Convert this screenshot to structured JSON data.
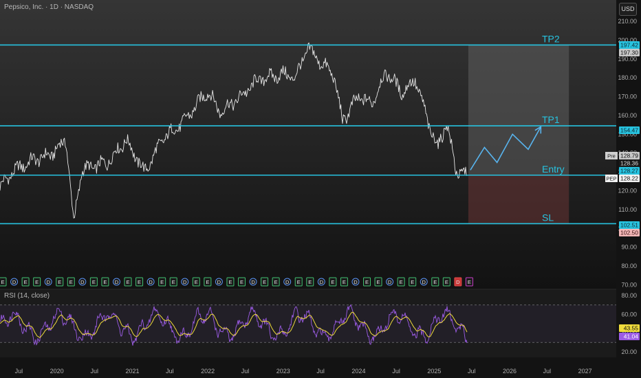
{
  "header": {
    "title": "Pepsico, Inc. · 1D · NASDAQ",
    "currency_button": "USD"
  },
  "rsi_panel": {
    "title": "RSI (14, close)",
    "value_rsi": "41.04",
    "value_ma": "43.55"
  },
  "colors": {
    "level_line": "#27c3e0",
    "price_line": "#e6e6e6",
    "rsi_line": "#9c5ce6",
    "rsi_ma": "#f0dc3c",
    "target_zone": "#5f5f5f",
    "stop_zone": "#6a3434"
  },
  "chart_data": {
    "type": "line",
    "title": "Pepsico, Inc. · 1D · NASDAQ",
    "ylim": [
      68,
      214
    ],
    "y_ticks": [
      210,
      200,
      190,
      180,
      170,
      160,
      150,
      140,
      130,
      120,
      110,
      100,
      90,
      80,
      70
    ],
    "x_ticks": [
      "Jul",
      "2020",
      "Jul",
      "2021",
      "Jul",
      "2022",
      "Jul",
      "2023",
      "Jul",
      "2024",
      "Jul",
      "2025",
      "Jul",
      "2026",
      "Jul",
      "2027"
    ],
    "x_range": [
      "2019-04-01",
      "2027-06-01"
    ],
    "price_series": {
      "name": "PEP",
      "points": [
        [
          "2019-04-01",
          122
        ],
        [
          "2019-06-01",
          130
        ],
        [
          "2019-09-01",
          136
        ],
        [
          "2019-12-01",
          139
        ],
        [
          "2020-02-15",
          147
        ],
        [
          "2020-03-23",
          103
        ],
        [
          "2020-05-01",
          131
        ],
        [
          "2020-09-01",
          135
        ],
        [
          "2020-12-01",
          147
        ],
        [
          "2021-03-01",
          130
        ],
        [
          "2021-06-01",
          148
        ],
        [
          "2021-09-01",
          156
        ],
        [
          "2021-12-31",
          173
        ],
        [
          "2022-03-01",
          162
        ],
        [
          "2022-06-01",
          169
        ],
        [
          "2022-09-01",
          179
        ],
        [
          "2022-12-31",
          182
        ],
        [
          "2023-03-01",
          180
        ],
        [
          "2023-05-01",
          196
        ],
        [
          "2023-07-01",
          188
        ],
        [
          "2023-09-01",
          182
        ],
        [
          "2023-10-15",
          157
        ],
        [
          "2024-01-01",
          170
        ],
        [
          "2024-03-01",
          166
        ],
        [
          "2024-05-15",
          183
        ],
        [
          "2024-08-01",
          172
        ],
        [
          "2024-10-01",
          179
        ],
        [
          "2024-12-15",
          152
        ],
        [
          "2025-01-20",
          143
        ],
        [
          "2025-03-01",
          157
        ],
        [
          "2025-04-15",
          131
        ],
        [
          "2025-06-10",
          128.2
        ]
      ],
      "projection": [
        [
          "2025-06-25",
          131
        ],
        [
          "2025-09-01",
          143
        ],
        [
          "2025-11-01",
          135
        ],
        [
          "2026-01-15",
          150
        ],
        [
          "2026-04-01",
          142
        ],
        [
          "2026-06-01",
          154
        ]
      ]
    },
    "levels": [
      {
        "label": "TP2",
        "value": 197.42
      },
      {
        "label": "TP1",
        "value": 154.47
      },
      {
        "label": "Entry",
        "value": 128.27
      },
      {
        "label": "SL",
        "value": 102.51
      }
    ],
    "position_box": {
      "start": "2025-06-15",
      "end": "2026-10-15",
      "entry": 128.27,
      "target": 197.42,
      "stop": 102.51
    },
    "price_labels": [
      {
        "text": "197.42",
        "value": 197.42,
        "kind": "level"
      },
      {
        "text": "197.30",
        "value": 197.3,
        "kind": "gray"
      },
      {
        "text": "154.47",
        "value": 154.47,
        "kind": "level"
      },
      {
        "text": "128.79",
        "value": 128.79,
        "kind": "gray",
        "tag": "Pre"
      },
      {
        "text": "128.36",
        "value": 128.36,
        "kind": "dark"
      },
      {
        "text": "128.27",
        "value": 128.27,
        "kind": "level"
      },
      {
        "text": "128.22",
        "value": 128.22,
        "kind": "white",
        "tag": "PEP"
      },
      {
        "text": "102.51",
        "value": 102.51,
        "kind": "level"
      },
      {
        "text": "102.50",
        "value": 102.5,
        "kind": "red"
      }
    ],
    "event_markers": [
      "E",
      "D",
      "E",
      "E",
      "D",
      "E",
      "E",
      "D",
      "E",
      "E",
      "D",
      "E",
      "E",
      "D",
      "E",
      "E",
      "D",
      "E",
      "E",
      "D",
      "E",
      "E",
      "D",
      "E",
      "E",
      "D",
      "E",
      "E",
      "D",
      "E",
      "E",
      "D",
      "E",
      "E",
      "D",
      "E",
      "E",
      "D",
      "E",
      "E",
      "D",
      "E"
    ],
    "rsi": {
      "name": "RSI (14, close)",
      "ylim": [
        14,
        86
      ],
      "y_ticks": [
        80,
        60,
        40,
        20
      ],
      "levels": [
        70,
        30
      ],
      "last_rsi": 41.04,
      "last_ma": 43.55
    }
  }
}
